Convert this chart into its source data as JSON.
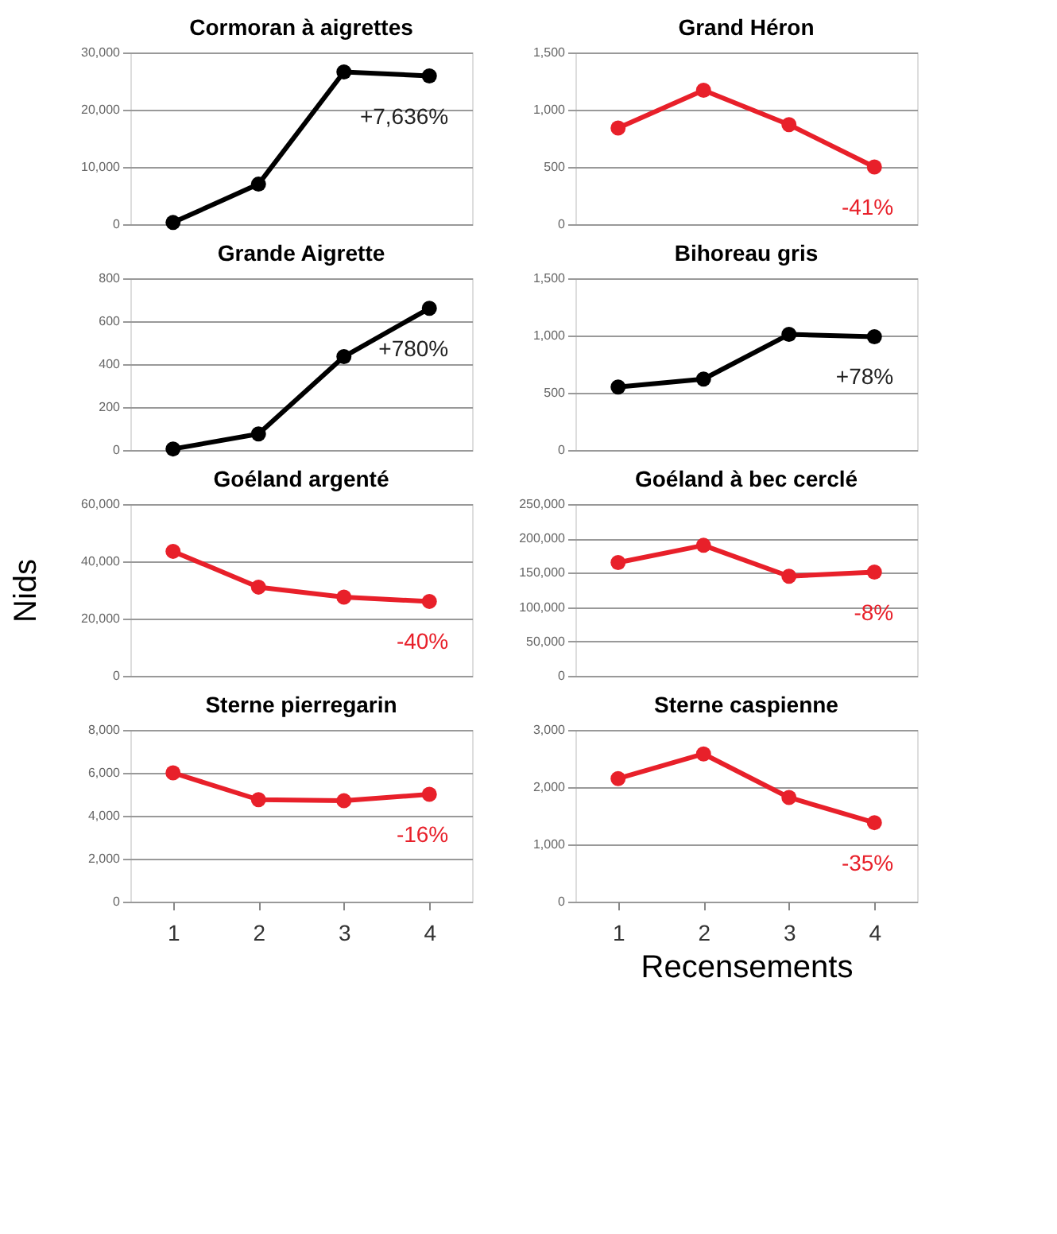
{
  "chart_data": [
    {
      "type": "line",
      "title": "Cormoran à aigrettes",
      "x": [
        1,
        2,
        3,
        4
      ],
      "series": [
        {
          "color": "#000000",
          "values": [
            300,
            7000,
            26600,
            25900
          ]
        }
      ],
      "xlim": [
        0.5,
        4.5
      ],
      "ylim": [
        0,
        30000
      ],
      "yticks": [
        0,
        {
          "value": 10000,
          "label": "10,000"
        },
        {
          "value": 20000,
          "label": "20,000"
        },
        {
          "value": 30000,
          "label": "30,000"
        }
      ],
      "grid": "y",
      "marker": "circle",
      "line_style": "solid",
      "tick_labels": "y",
      "annotations": [
        "+7,636%"
      ]
    },
    {
      "type": "line",
      "title": "Grand Héron",
      "x": [
        1,
        2,
        3,
        4
      ],
      "series": [
        {
          "color": "#e8202a",
          "values": [
            840,
            1170,
            870,
            500
          ]
        }
      ],
      "xlim": [
        0.5,
        4.5
      ],
      "ylim": [
        0,
        1500
      ],
      "yticks": [
        0,
        500,
        {
          "value": 1000,
          "label": "1,000"
        },
        {
          "value": 1500,
          "label": "1,500"
        }
      ],
      "grid": "y",
      "marker": "circle",
      "line_style": "solid",
      "tick_labels": "y",
      "annotations": [
        "-41%"
      ]
    },
    {
      "type": "line",
      "title": "Grande Aigrette",
      "x": [
        1,
        2,
        3,
        4
      ],
      "series": [
        {
          "color": "#000000",
          "values": [
            5,
            75,
            435,
            660
          ]
        }
      ],
      "xlim": [
        0.5,
        4.5
      ],
      "ylim": [
        0,
        800
      ],
      "yticks": [
        0,
        200,
        400,
        600,
        800
      ],
      "grid": "y",
      "marker": "circle",
      "line_style": "solid",
      "tick_labels": "y",
      "annotations": [
        "+780%"
      ]
    },
    {
      "type": "line",
      "title": "Bihoreau gris",
      "x": [
        1,
        2,
        3,
        4
      ],
      "series": [
        {
          "color": "#000000",
          "values": [
            550,
            620,
            1010,
            990
          ]
        }
      ],
      "xlim": [
        0.5,
        4.5
      ],
      "ylim": [
        0,
        1500
      ],
      "yticks": [
        0,
        500,
        {
          "value": 1000,
          "label": "1,000"
        },
        {
          "value": 1500,
          "label": "1,500"
        }
      ],
      "grid": "y",
      "marker": "circle",
      "line_style": "solid",
      "tick_labels": "y",
      "annotations": [
        "+78%"
      ]
    },
    {
      "type": "line",
      "title": "Goéland argenté",
      "x": [
        1,
        2,
        3,
        4
      ],
      "series": [
        {
          "color": "#e8202a",
          "values": [
            43500,
            31000,
            27500,
            26000
          ]
        }
      ],
      "xlim": [
        0.5,
        4.5
      ],
      "ylim": [
        0,
        60000
      ],
      "yticks": [
        0,
        {
          "value": 20000,
          "label": "20,000"
        },
        {
          "value": 40000,
          "label": "40,000"
        },
        {
          "value": 60000,
          "label": "60,000"
        }
      ],
      "ylabel": "Nids",
      "grid": "y",
      "marker": "circle",
      "line_style": "solid",
      "tick_labels": "y",
      "annotations": [
        "-40%"
      ]
    },
    {
      "type": "line",
      "title": "Goéland à bec cerclé",
      "x": [
        1,
        2,
        3,
        4
      ],
      "series": [
        {
          "color": "#e8202a",
          "values": [
            165000,
            190000,
            145000,
            151000
          ]
        }
      ],
      "xlim": [
        0.5,
        4.5
      ],
      "ylim": [
        0,
        250000
      ],
      "yticks": [
        0,
        {
          "value": 50000,
          "label": "50,000"
        },
        {
          "value": 100000,
          "label": "100,000"
        },
        {
          "value": 150000,
          "label": "150,000"
        },
        {
          "value": 200000,
          "label": "200,000"
        },
        {
          "value": 250000,
          "label": "250,000"
        }
      ],
      "grid": "y",
      "marker": "circle",
      "line_style": "solid",
      "tick_labels": "y",
      "annotations": [
        "-8%"
      ]
    },
    {
      "type": "line",
      "title": "Sterne pierregarin",
      "x": [
        1,
        2,
        3,
        4
      ],
      "series": [
        {
          "color": "#e8202a",
          "values": [
            6000,
            4750,
            4700,
            5000
          ]
        }
      ],
      "xlim": [
        0.5,
        4.5
      ],
      "ylim": [
        0,
        8000
      ],
      "yticks": [
        0,
        {
          "value": 2000,
          "label": "2,000"
        },
        {
          "value": 4000,
          "label": "4,000"
        },
        {
          "value": 6000,
          "label": "6,000"
        },
        {
          "value": 8000,
          "label": "8,000"
        }
      ],
      "grid": "y",
      "marker": "circle",
      "line_style": "solid",
      "xticks": [
        1,
        2,
        3,
        4
      ],
      "annotations": [
        "-16%"
      ]
    },
    {
      "type": "line",
      "title": "Sterne caspienne",
      "x": [
        1,
        2,
        3,
        4
      ],
      "series": [
        {
          "color": "#e8202a",
          "values": [
            2150,
            2580,
            1820,
            1380
          ]
        }
      ],
      "xlim": [
        0.5,
        4.5
      ],
      "ylim": [
        0,
        3000
      ],
      "yticks": [
        0,
        {
          "value": 1000,
          "label": "1,000"
        },
        {
          "value": 2000,
          "label": "2,000"
        },
        {
          "value": 3000,
          "label": "3,000"
        }
      ],
      "xlabel": "Recensements",
      "grid": "y",
      "marker": "circle",
      "line_style": "solid",
      "xticks": [
        1,
        2,
        3,
        4
      ],
      "annotations": [
        "-35%"
      ]
    }
  ]
}
